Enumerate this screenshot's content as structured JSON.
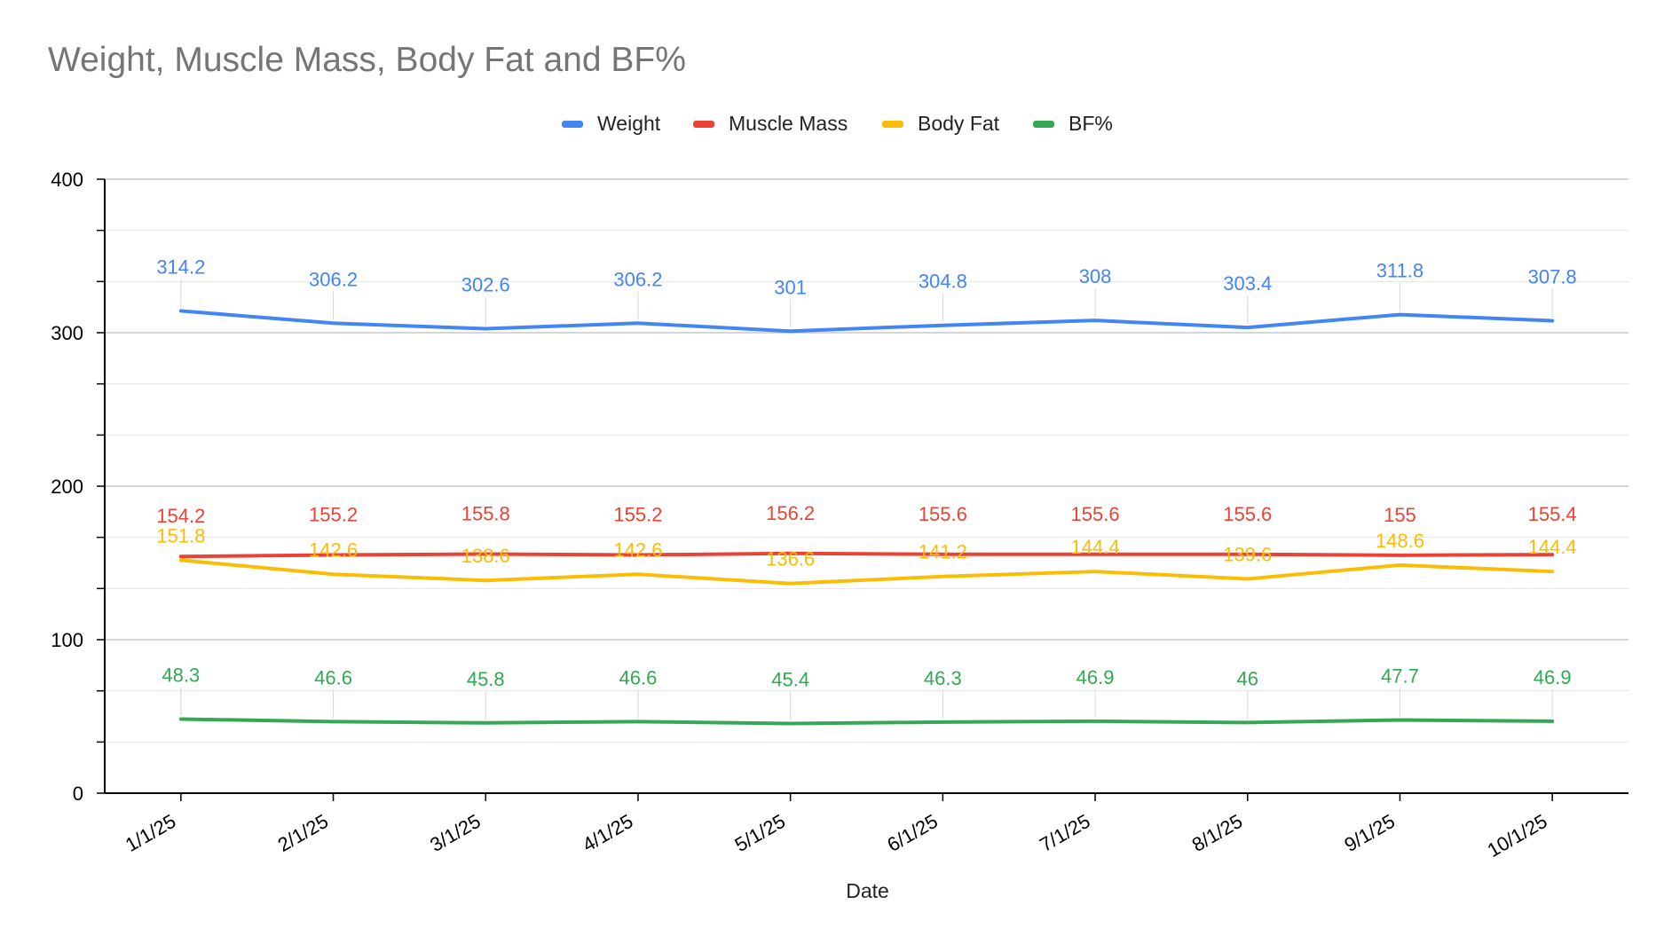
{
  "chart_data": {
    "type": "line",
    "title": "Weight, Muscle Mass, Body Fat and BF%",
    "xlabel": "Date",
    "ylabel": "",
    "ylim": [
      0,
      400
    ],
    "yticks": [
      "0",
      "100",
      "200",
      "300",
      "400"
    ],
    "grid": true,
    "legend_position": "top",
    "categories": [
      "1/1/25",
      "2/1/25",
      "3/1/25",
      "4/1/25",
      "5/1/25",
      "6/1/25",
      "7/1/25",
      "8/1/25",
      "9/1/25",
      "10/1/25"
    ],
    "series": [
      {
        "name": "Weight",
        "color": "#4285f4",
        "values": [
          314.2,
          306.2,
          302.6,
          306.2,
          301,
          304.8,
          308,
          303.4,
          311.8,
          307.8
        ],
        "labels": [
          "314.2",
          "306.2",
          "302.6",
          "306.2",
          "301",
          "304.8",
          "308",
          "303.4",
          "311.8",
          "307.8"
        ]
      },
      {
        "name": "Muscle Mass",
        "color": "#ea4335",
        "values": [
          154.2,
          155.2,
          155.8,
          155.2,
          156.2,
          155.6,
          155.6,
          155.6,
          155,
          155.4
        ],
        "labels": [
          "154.2",
          "155.2",
          "155.8",
          "155.2",
          "156.2",
          "155.6",
          "155.6",
          "155.6",
          "155",
          "155.4"
        ]
      },
      {
        "name": "Body Fat",
        "color": "#fbbc04",
        "values": [
          151.8,
          142.6,
          138.6,
          142.6,
          136.6,
          141.2,
          144.4,
          139.6,
          148.6,
          144.4
        ],
        "labels": [
          "151.8",
          "142.6",
          "138.6",
          "142.6",
          "136.6",
          "141.2",
          "144.4",
          "139.6",
          "148.6",
          "144.4"
        ]
      },
      {
        "name": "BF%",
        "color": "#34a853",
        "values": [
          48.3,
          46.6,
          45.8,
          46.6,
          45.4,
          46.3,
          46.9,
          46,
          47.7,
          46.9
        ],
        "labels": [
          "48.3",
          "46.6",
          "45.8",
          "46.6",
          "45.4",
          "46.3",
          "46.9",
          "46",
          "47.7",
          "46.9"
        ]
      }
    ]
  }
}
